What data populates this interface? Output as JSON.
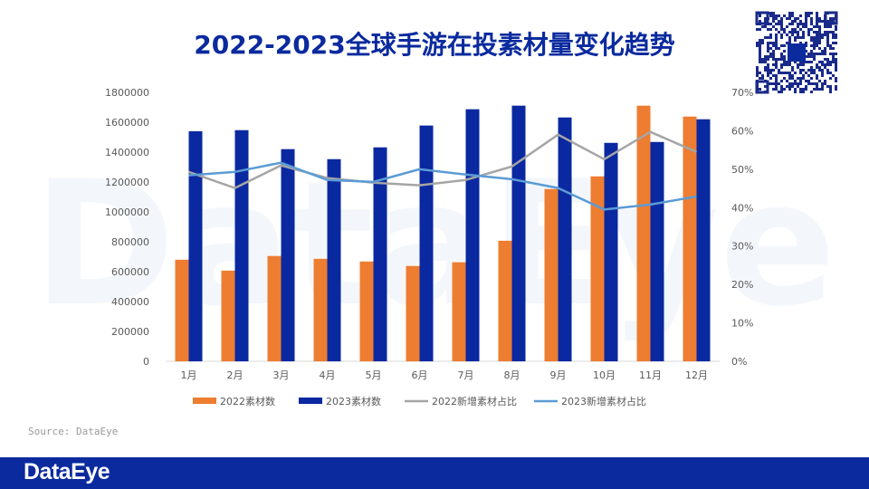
{
  "title": "2022-2023全球手游在投素材量变化趋势",
  "source": "Source: DataEye",
  "footer": {
    "logo": "DataEye"
  },
  "watermark": "DataEye",
  "colors": {
    "orange": "#ed7d31",
    "navy": "#0a28a0",
    "gray": "#a5a5a5",
    "lightblue": "#5b9bd5",
    "title": "#0a2a9e"
  },
  "chart_data": {
    "type": "bar+line",
    "categories": [
      "1月",
      "2月",
      "3月",
      "4月",
      "5月",
      "6月",
      "7月",
      "8月",
      "9月",
      "10月",
      "11月",
      "12月"
    ],
    "y_left": {
      "range": [
        0,
        1800000
      ],
      "ticks": [
        "0",
        "200000",
        "400000",
        "600000",
        "800000",
        "1000000",
        "1200000",
        "1400000",
        "1600000",
        "1800000"
      ]
    },
    "y_right": {
      "range": [
        0,
        70
      ],
      "ticks": [
        "0%",
        "10%",
        "20%",
        "30%",
        "40%",
        "50%",
        "60%",
        "70%"
      ]
    },
    "series": [
      {
        "name": "2022素材数",
        "type": "bar",
        "axis": "left",
        "color": "#ed7d31",
        "values": [
          680000,
          607000,
          705000,
          686000,
          668000,
          638000,
          663000,
          807000,
          1153000,
          1238000,
          1711000,
          1638000
        ]
      },
      {
        "name": "2023素材数",
        "type": "bar",
        "axis": "left",
        "color": "#0a28a0",
        "values": [
          1540000,
          1547000,
          1420000,
          1353000,
          1432000,
          1578000,
          1687000,
          1711000,
          1632000,
          1462000,
          1468000,
          1620000
        ]
      },
      {
        "name": "2022新增素材占比",
        "type": "line",
        "axis": "right",
        "color": "#a5a5a5",
        "values": [
          49.3,
          45.1,
          51.0,
          47.7,
          46.5,
          45.8,
          47.2,
          50.7,
          59.0,
          52.6,
          59.7,
          54.5
        ]
      },
      {
        "name": "2023新增素材占比",
        "type": "line",
        "axis": "right",
        "color": "#5b9bd5",
        "values": [
          48.4,
          49.3,
          51.7,
          47.2,
          46.7,
          50.0,
          48.6,
          47.4,
          45.1,
          39.5,
          40.8,
          42.9
        ]
      }
    ],
    "legend": "bottom",
    "grid": false
  }
}
